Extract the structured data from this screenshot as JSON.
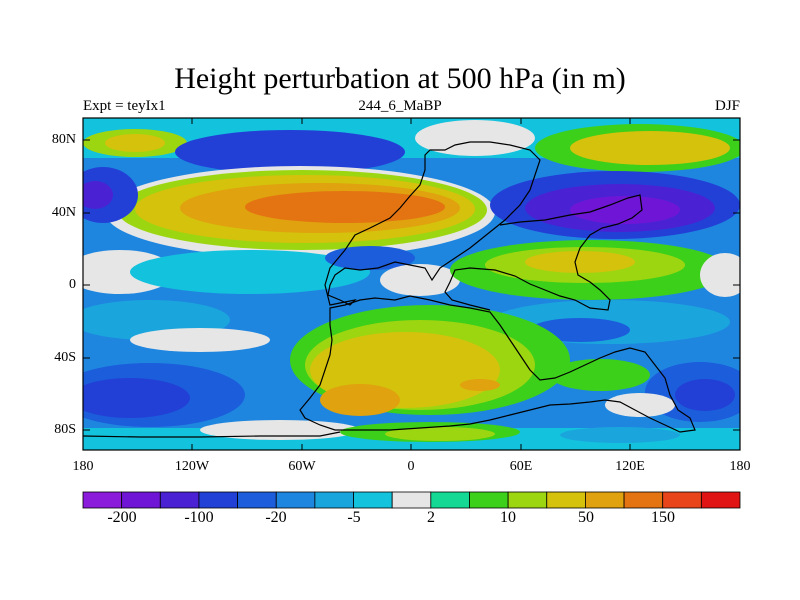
{
  "title": "Height perturbation at 500 hPa (in m)",
  "subtitle_left": "Expt = teyIx1",
  "subtitle_center": "244_6_MaBP",
  "subtitle_right": "DJF",
  "lat_labels": [
    "80N",
    "40N",
    "0",
    "40S",
    "80S"
  ],
  "lon_labels": [
    "180",
    "120W",
    "60W",
    "0",
    "60E",
    "120E",
    "180"
  ],
  "colorbar": {
    "colors": [
      "#8b1cdb",
      "#6f16d6",
      "#4a22d4",
      "#2240d6",
      "#1b5ddb",
      "#1f86e0",
      "#1aa6dd",
      "#13c2dd",
      "#e6e6e6",
      "#15d895",
      "#3cd01a",
      "#9cd610",
      "#d4c20c",
      "#e0a20e",
      "#e47412",
      "#e8461a",
      "#e01414"
    ],
    "labels": [
      "-200",
      "-100",
      "-20",
      "-5",
      "2",
      "10",
      "50",
      "150"
    ]
  }
}
